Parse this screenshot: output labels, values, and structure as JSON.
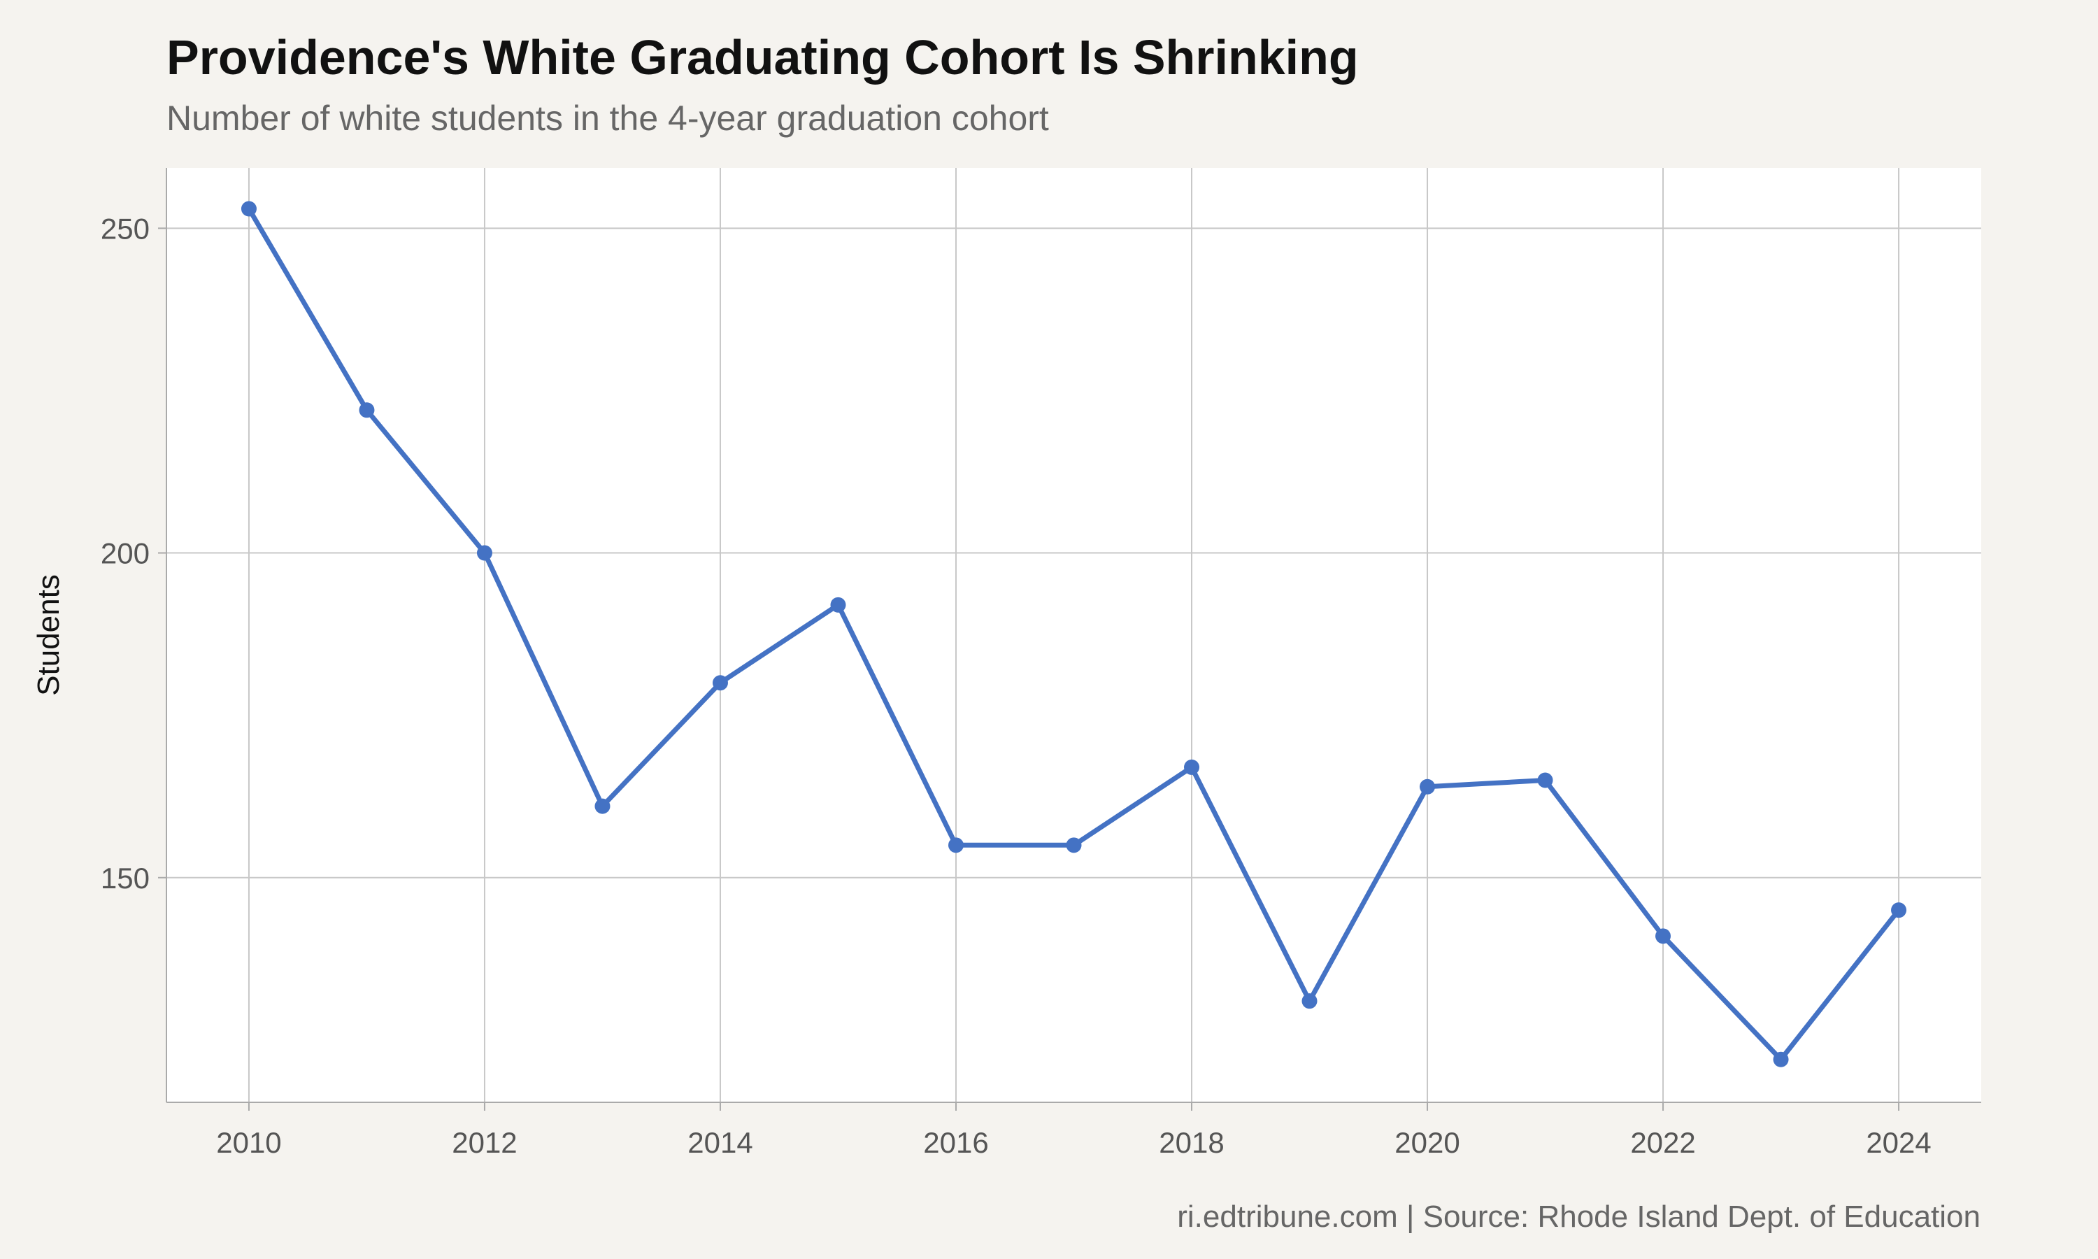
{
  "title": "Providence's White Graduating Cohort Is Shrinking",
  "subtitle": "Number of white students in the 4-year graduation cohort",
  "caption": "ri.edtribune.com | Source: Rhode Island Dept. of Education",
  "chart_data": {
    "type": "line",
    "title": "Providence's White Graduating Cohort Is Shrinking",
    "subtitle": "Number of white students in the 4-year graduation cohort",
    "xlabel": "",
    "ylabel": "Students",
    "x": [
      2010,
      2011,
      2012,
      2013,
      2014,
      2015,
      2016,
      2017,
      2018,
      2019,
      2020,
      2021,
      2022,
      2023,
      2024
    ],
    "series": [
      {
        "values": [
          253,
          222,
          200,
          161,
          180,
          192,
          155,
          155,
          167,
          131,
          164,
          165,
          141,
          122,
          145
        ]
      }
    ],
    "x_ticks": [
      2010,
      2012,
      2014,
      2016,
      2018,
      2020,
      2022,
      2024
    ],
    "y_ticks": [
      150,
      200,
      250
    ],
    "xlim": [
      2009.3,
      2024.7
    ],
    "ylim": [
      115.4,
      259.3
    ],
    "grid": true,
    "legend": "none",
    "colors": {
      "line": "#4472c4",
      "grid": "#c8c8c8",
      "panel": "#ffffff",
      "background": "#f5f3ef"
    }
  }
}
